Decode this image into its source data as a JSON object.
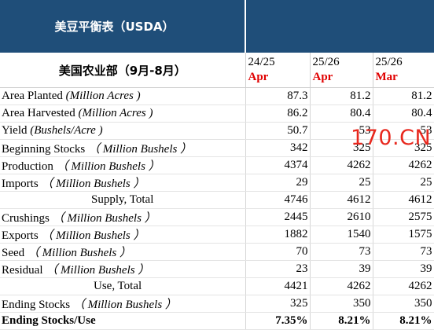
{
  "header": {
    "title": "美豆平衡表（USDA）",
    "department": "美国农业部（9月-8月）",
    "columns": [
      {
        "year": "24/25",
        "month": "Apr"
      },
      {
        "year": "25/26",
        "month": "Apr"
      },
      {
        "year": "25/26",
        "month": "Mar"
      }
    ]
  },
  "rows": [
    {
      "label": "Area Planted",
      "unit": "(Million Acres )",
      "values": [
        "87.3",
        "81.2",
        "81.2"
      ]
    },
    {
      "label": "Area Harvested",
      "unit": "(Million Acres )",
      "values": [
        "86.2",
        "80.4",
        "80.4"
      ]
    },
    {
      "label": "Yield",
      "unit": "(Bushels/Acre )",
      "values": [
        "50.7",
        "53",
        "53"
      ]
    },
    {
      "label": "Beginning Stocks",
      "unit": "（ Million Bushels ）",
      "values": [
        "342",
        "325",
        "325"
      ]
    },
    {
      "label": "Production",
      "unit": "（ Million Bushels ）",
      "values": [
        "4374",
        "4262",
        "4262"
      ]
    },
    {
      "label": "Imports",
      "unit": "（ Million Bushels ）",
      "values": [
        "29",
        "25",
        "25"
      ]
    },
    {
      "label": "Supply, Total",
      "unit": "",
      "values": [
        "4746",
        "4612",
        "4612"
      ]
    },
    {
      "label": "Crushings",
      "unit": "（ Million Bushels ）",
      "values": [
        "2445",
        "2610",
        "2575"
      ]
    },
    {
      "label": "Exports",
      "unit": "（ Million Bushels ）",
      "values": [
        "1882",
        "1540",
        "1575"
      ]
    },
    {
      "label": "Seed",
      "unit": "（ Million Bushels ）",
      "values": [
        "70",
        "73",
        "73"
      ]
    },
    {
      "label": "Residual",
      "unit": "（ Million Bushels ）",
      "values": [
        "23",
        "39",
        "39"
      ]
    },
    {
      "label": "Use, Total",
      "unit": "",
      "values": [
        "4421",
        "4262",
        "4262"
      ]
    },
    {
      "label": "Ending Stocks",
      "unit": "（ Million Bushels ）",
      "values": [
        "325",
        "350",
        "350"
      ]
    },
    {
      "label": "Ending Stocks/Use",
      "unit": "",
      "values": [
        "7.35%",
        "8.21%",
        "8.21%"
      ]
    }
  ],
  "watermark": "170.CN",
  "colors": {
    "header_bg": "#1f4e79",
    "month_text": "#e00000",
    "watermark": "#e8281e"
  }
}
